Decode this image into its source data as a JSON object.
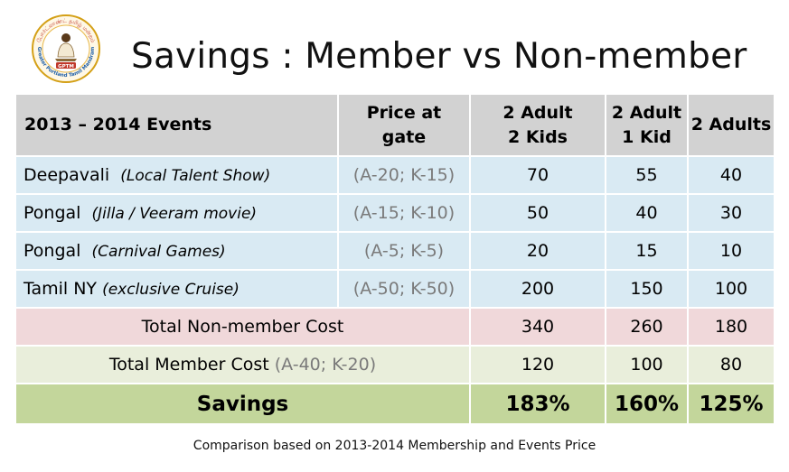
{
  "logo": {
    "ring_text": "Greater Portland Tamil Mandram",
    "top_text": "போர்ட்லாண்ட் தமிழ் மன்றம்",
    "badge_text": "GPTM"
  },
  "title": "Savings : Member vs Non-member",
  "table": {
    "headers": [
      {
        "line1": "2013 – 2014 Events",
        "line2": ""
      },
      {
        "line1": "Price at",
        "line2": "gate"
      },
      {
        "line1": "2 Adult",
        "line2": "2 Kids"
      },
      {
        "line1": "2 Adult",
        "line2": "1 Kid"
      },
      {
        "line1": "2 Adults",
        "line2": ""
      }
    ],
    "events": [
      {
        "name": "Deepavali",
        "note": "(Local Talent Show)",
        "price": "(A-20; K-15)",
        "v1": "70",
        "v2": "55",
        "v3": "40"
      },
      {
        "name": "Pongal",
        "note": "(Jilla / Veeram  movie)",
        "price": "(A-15; K-10)",
        "v1": "50",
        "v2": "40",
        "v3": "30"
      },
      {
        "name": "Pongal",
        "note": "(Carnival Games)",
        "price": "(A-5; K-5)",
        "v1": "20",
        "v2": "15",
        "v3": "10"
      },
      {
        "name": "Tamil NY",
        "note": "(exclusive Cruise)",
        "price": "(A-50; K-50)",
        "v1": "200",
        "v2": "150",
        "v3": "100"
      }
    ],
    "non_member": {
      "label": "Total Non-member Cost",
      "v1": "340",
      "v2": "260",
      "v3": "180"
    },
    "member": {
      "label": "Total Member Cost",
      "note": "(A-40; K-20)",
      "v1": "120",
      "v2": "100",
      "v3": "80"
    },
    "savings": {
      "label": "Savings",
      "v1": "183%",
      "v2": "160%",
      "v3": "125%"
    }
  },
  "footnote": "Comparison based on 2013-2014 Membership and Events Price",
  "colors": {
    "header_bg": "#d2d2d2",
    "event_row_bg": "#d9eaf3",
    "non_member_bg": "#f0d8da",
    "member_bg": "#e9eedb",
    "savings_bg": "#c3d69b"
  }
}
